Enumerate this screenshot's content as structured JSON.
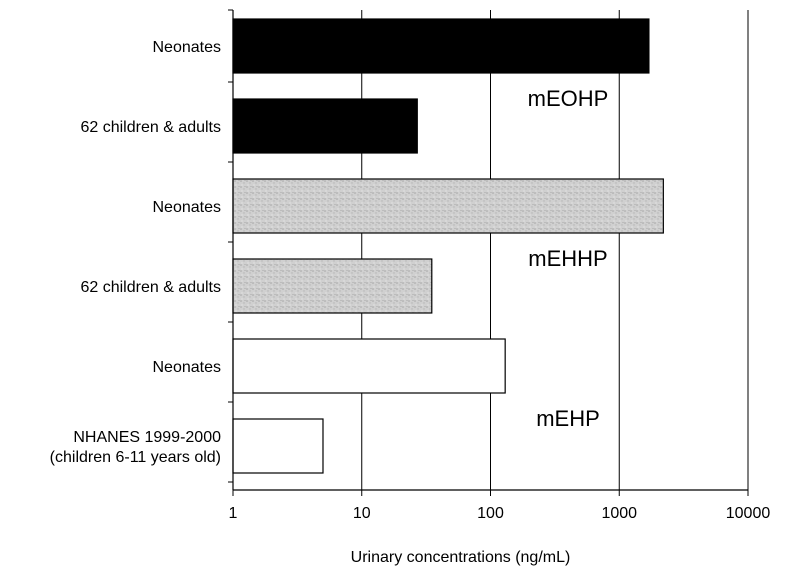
{
  "chart_data": {
    "type": "bar",
    "orientation": "horizontal",
    "x_scale": "log",
    "xlim": [
      1,
      10000
    ],
    "xlabel": "Urinary concentrations (ng/mL)",
    "x_ticks": [
      "1",
      "10",
      "100",
      "1000",
      "10000"
    ],
    "x_tick_values": [
      1,
      10,
      100,
      1000,
      10000
    ],
    "grid": "vertical lines at each decade",
    "categories": [
      [
        "Neonates"
      ],
      [
        "62 children & adults"
      ],
      [
        "Neonates"
      ],
      [
        "62 children & adults"
      ],
      [
        "Neonates"
      ],
      [
        "NHANES 1999-2000",
        "(children 6-11 years old)"
      ]
    ],
    "values": [
      1700,
      27,
      2200,
      35,
      130,
      5
    ],
    "bar_fills": [
      "solid",
      "solid",
      "speckled",
      "speckled",
      "plain",
      "plain"
    ],
    "group_labels": [
      "mEOHP",
      "mEHHP",
      "mEHP"
    ],
    "colors": {
      "solid": "#000000",
      "speckled": "#d0d0d0",
      "speckled_dark": "#a6a6a6",
      "plain": "#ffffff",
      "outline": "#000000"
    }
  }
}
